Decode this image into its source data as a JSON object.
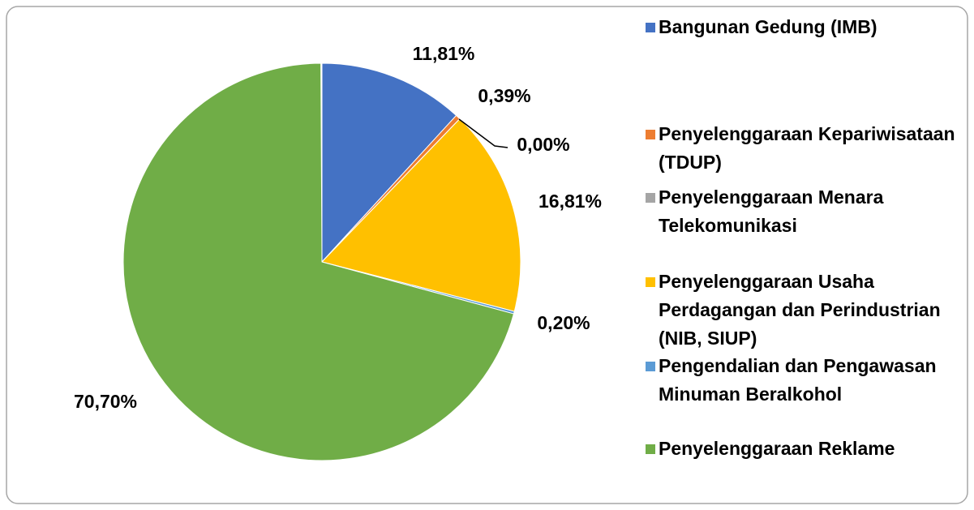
{
  "chart_data": {
    "type": "pie",
    "categories": [
      "Bangunan Gedung (IMB)",
      "Penyelenggaraan Kepariwisataan (TDUP)",
      "Penyelenggaraan Menara Telekomunikasi",
      "Penyelenggaraan Usaha Perdagangan dan Perindustrian (NIB, SIUP)",
      "Pengendalian dan Pengawasan Minuman Beralkohol",
      "Penyelenggaraan Reklame"
    ],
    "values": [
      11.81,
      0.39,
      0.0,
      16.81,
      0.2,
      70.7
    ],
    "value_labels": [
      "11,81%",
      "0,39%",
      "0,00%",
      "16,81%",
      "0,20%",
      "70,70%"
    ],
    "colors": [
      "#4472c4",
      "#ed7d31",
      "#a5a5a5",
      "#ffc000",
      "#5b9bd5",
      "#70ad47"
    ],
    "legend": "right"
  }
}
